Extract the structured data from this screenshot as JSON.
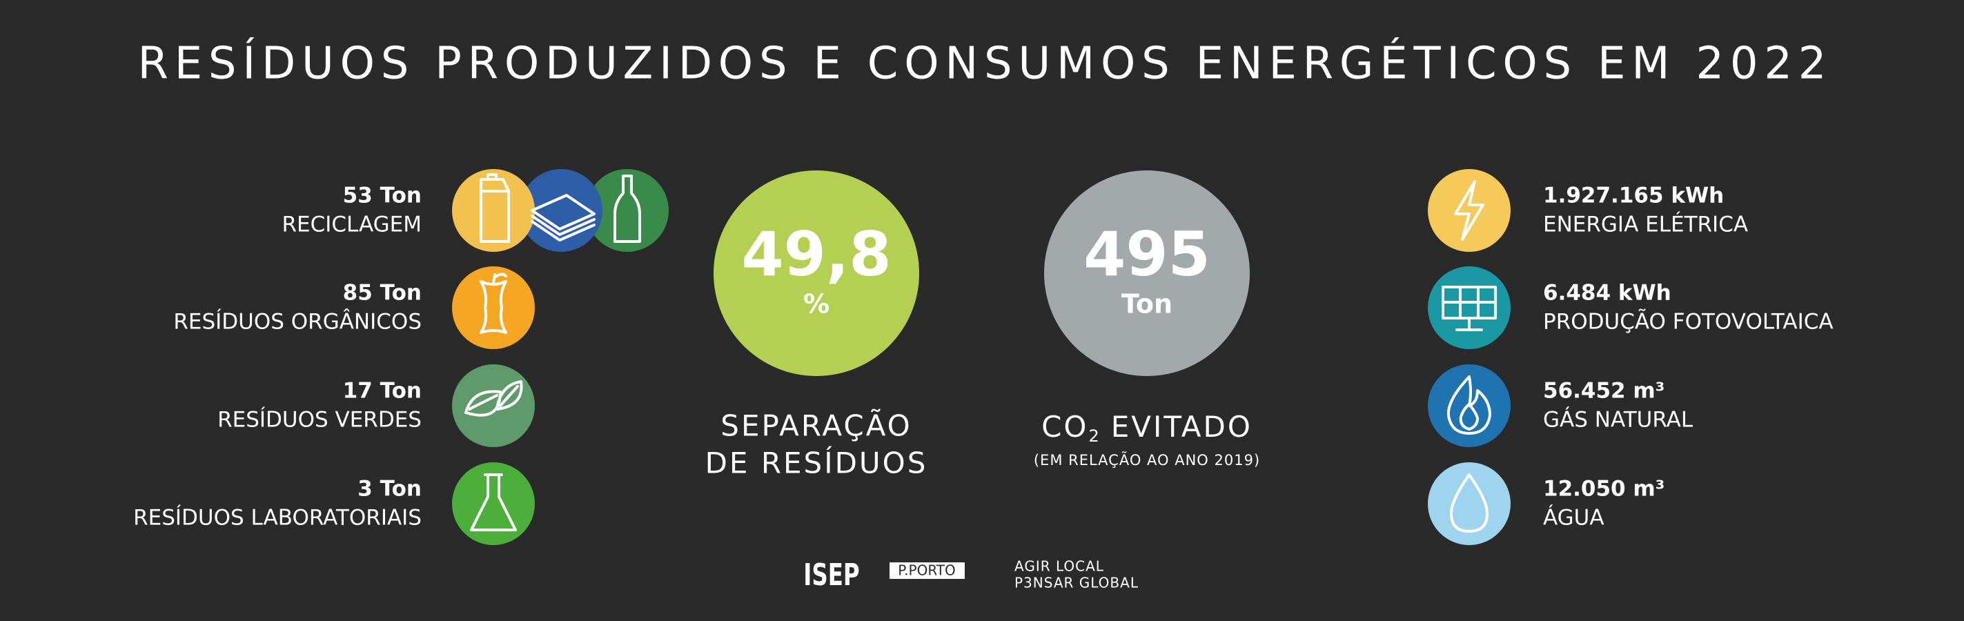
{
  "title": "RESÍDUOS PRODUZIDOS E CONSUMOS ENERGÉTICOS EM 2022",
  "waste": [
    {
      "amount": "53 Ton",
      "label": "RECICLAGEM"
    },
    {
      "amount": "85 Ton",
      "label": "RESÍDUOS ORGÂNICOS"
    },
    {
      "amount": "17 Ton",
      "label": "RESÍDUOS VERDES"
    },
    {
      "amount": "3 Ton",
      "label": "RESÍDUOS LABORATORIAIS"
    }
  ],
  "separation": {
    "value": "49,8",
    "unit": "%",
    "label_lines": [
      "SEPARAÇÃO",
      "DE RESÍDUOS"
    ]
  },
  "co2": {
    "value": "495",
    "unit": "Ton",
    "label_prefix": "CO",
    "label_subscript": "2",
    "label_rest": "EVITADO",
    "note": "(EM RELAÇÃO AO ANO 2019)"
  },
  "energy": [
    {
      "amount": "1.927.165 kWh",
      "label": "ENERGIA ELÉTRICA"
    },
    {
      "amount": "6.484 kWh",
      "label": "PRODUÇÃO FOTOVOLTAICA"
    },
    {
      "amount": "56.452 m³",
      "label": "GÁS NATURAL"
    },
    {
      "amount": "12.050 m³",
      "label": "ÁGUA"
    }
  ],
  "footer": {
    "logo": "ISEP",
    "brand": "P.PORTO",
    "slogan_lines": [
      "AGIR LOCAL",
      "P3NSAR GLOBAL"
    ]
  }
}
